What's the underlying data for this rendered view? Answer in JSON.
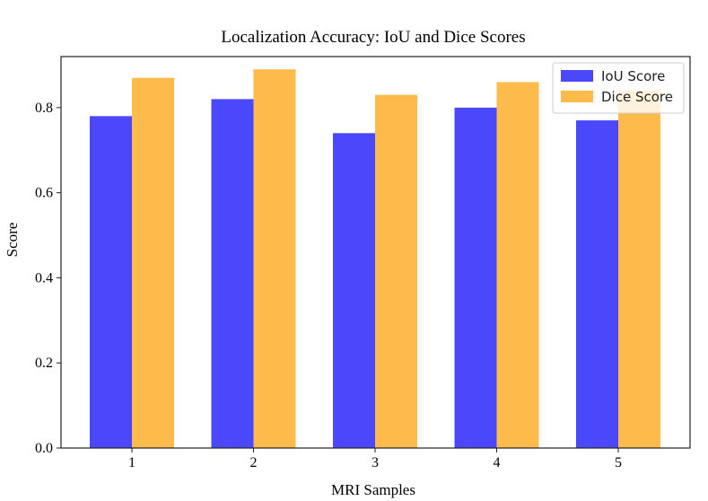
{
  "chart_data": {
    "type": "bar",
    "title": "Localization Accuracy: IoU and Dice Scores",
    "xlabel": "MRI Samples",
    "ylabel": "Score",
    "categories": [
      "1",
      "2",
      "3",
      "4",
      "5"
    ],
    "series": [
      {
        "name": "IoU Score",
        "color": "#4b47fb",
        "values": [
          0.78,
          0.82,
          0.74,
          0.8,
          0.77
        ]
      },
      {
        "name": "Dice Score",
        "color": "#fdbb4b",
        "values": [
          0.87,
          0.89,
          0.83,
          0.86,
          0.84
        ]
      }
    ],
    "ylim": [
      0,
      0.92
    ],
    "yticks": [
      "0.0",
      "0.2",
      "0.4",
      "0.6",
      "0.8"
    ],
    "grid": false,
    "legend": "top-right"
  }
}
